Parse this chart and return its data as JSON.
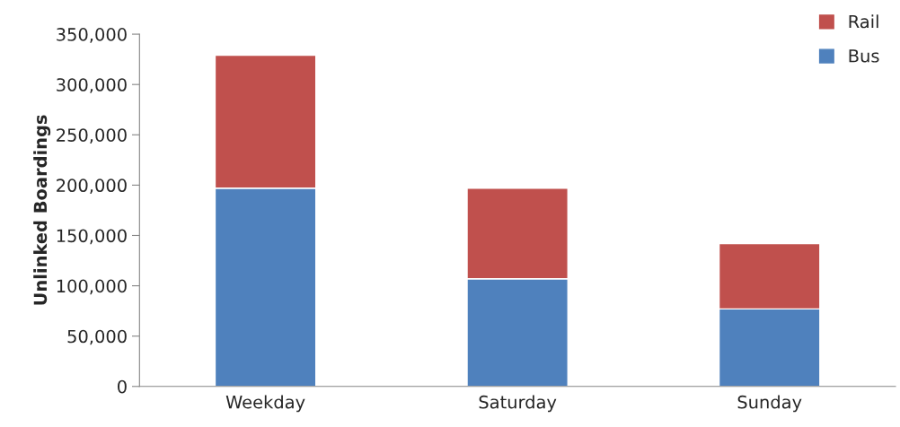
{
  "chart_data": {
    "type": "bar",
    "stacked": true,
    "ylabel": "Unlinked Boardings",
    "categories": [
      "Weekday",
      "Saturday",
      "Sunday"
    ],
    "series": [
      {
        "name": "Bus",
        "color": "#4f81bd",
        "values": [
          197000,
          107000,
          77000
        ]
      },
      {
        "name": "Rail",
        "color": "#c0504d",
        "values": [
          132000,
          90000,
          65000
        ]
      }
    ],
    "ylim": [
      0,
      350000
    ],
    "yticks": [
      {
        "value": 0,
        "label": "0"
      },
      {
        "value": 50000,
        "label": "50,000"
      },
      {
        "value": 100000,
        "label": "100,000"
      },
      {
        "value": 150000,
        "label": "150,000"
      },
      {
        "value": 200000,
        "label": "200,000"
      },
      {
        "value": 250000,
        "label": "250,000"
      },
      {
        "value": 300000,
        "label": "300,000"
      },
      {
        "value": 350000,
        "label": "350,000"
      }
    ],
    "grid": false,
    "legend": "top right"
  }
}
